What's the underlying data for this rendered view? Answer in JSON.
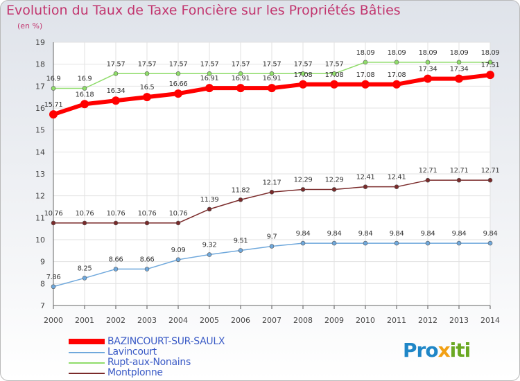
{
  "title": "Evolution du Taux de Taxe Foncière sur les Propriétés Bâties",
  "unit_label": "(en %)",
  "brand": {
    "text": "Proxiti",
    "part1": "Pro",
    "part2": "x",
    "part3": "iti"
  },
  "chart_data": {
    "type": "line",
    "title": "Evolution du Taux de Taxe Foncière sur les Propriétés Bâties",
    "ylabel": "(en %)",
    "xlabel": "",
    "ylim": [
      7,
      19
    ],
    "yticks": [
      "7",
      "8",
      "9",
      "10",
      "11",
      "12",
      "13",
      "14",
      "15",
      "16",
      "17",
      "18",
      "19"
    ],
    "categories": [
      "2000",
      "2001",
      "2002",
      "2003",
      "2004",
      "2005",
      "2006",
      "2007",
      "2008",
      "2009",
      "2010",
      "2011",
      "2012",
      "2013",
      "2014"
    ],
    "series": [
      {
        "name": "BAZINCOURT-SUR-SAULX",
        "color": "#ff0000",
        "bold": true,
        "values": [
          15.71,
          16.18,
          16.34,
          16.5,
          16.66,
          16.91,
          16.91,
          16.91,
          17.08,
          17.08,
          17.08,
          17.08,
          17.34,
          17.34,
          17.51
        ],
        "labels": [
          "15.71",
          "16.18",
          "16.34",
          "16.5",
          "16.66",
          "16.91",
          "16.91",
          "16.91",
          "17.08",
          "17.08",
          "17.08",
          "17.08",
          "17.34",
          "17.34",
          "17.51"
        ]
      },
      {
        "name": "Lavincourt",
        "color": "#6fa8dc",
        "values": [
          7.86,
          8.25,
          8.66,
          8.66,
          9.09,
          9.32,
          9.51,
          9.7,
          9.84,
          9.84,
          9.84,
          9.84,
          9.84,
          9.84,
          9.84
        ],
        "labels": [
          "7.86",
          "8.25",
          "8.66",
          "8.66",
          "9.09",
          "9.32",
          "9.51",
          "9.7",
          "9.84",
          "9.84",
          "9.84",
          "9.84",
          "9.84",
          "9.84",
          "9.84"
        ]
      },
      {
        "name": "Rupt-aux-Nonains",
        "color": "#8fdc6a",
        "values": [
          16.9,
          16.9,
          17.57,
          17.57,
          17.57,
          17.57,
          17.57,
          17.57,
          17.57,
          17.57,
          18.09,
          18.09,
          18.09,
          18.09,
          18.09
        ],
        "labels": [
          "16.9",
          "16.9",
          "17.57",
          "17.57",
          "17.57",
          "17.57",
          "17.57",
          "17.57",
          "17.57",
          "17.57",
          "18.09",
          "18.09",
          "18.09",
          "18.09",
          "18.09"
        ]
      },
      {
        "name": "Montplonne",
        "color": "#7a2a2a",
        "values": [
          10.76,
          10.76,
          10.76,
          10.76,
          10.76,
          11.39,
          11.82,
          12.17,
          12.29,
          12.29,
          12.41,
          12.41,
          12.71,
          12.71,
          12.71
        ],
        "labels": [
          "10.76",
          "10.76",
          "10.76",
          "10.76",
          "10.76",
          "11.39",
          "11.82",
          "12.17",
          "12.29",
          "12.29",
          "12.41",
          "12.41",
          "12.71",
          "12.71",
          "12.71"
        ]
      }
    ]
  }
}
